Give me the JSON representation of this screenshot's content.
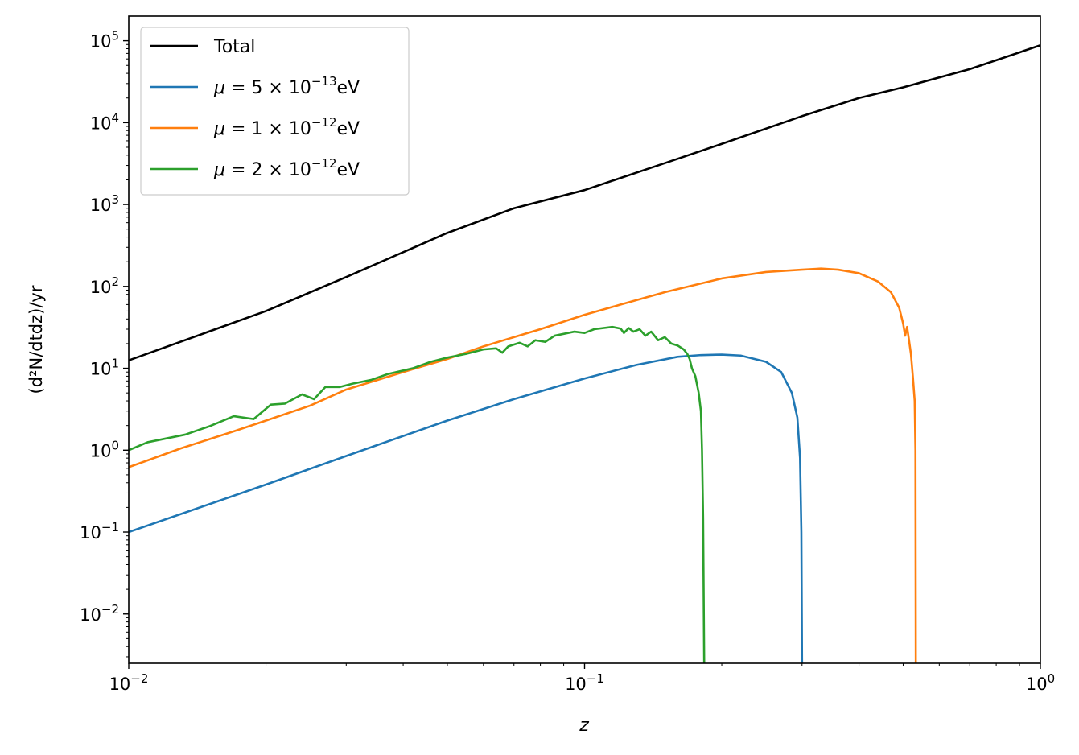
{
  "chart_data": {
    "type": "line",
    "title": "",
    "xlabel": "z",
    "ylabel": "(d²N/dtdz)/yr",
    "xscale": "log",
    "yscale": "log",
    "xlim": [
      0.01,
      1.0
    ],
    "ylim": [
      0.0025,
      200000
    ],
    "grid": false,
    "legend_position": "top-left",
    "x_ticks": [
      {
        "value": 0.01,
        "base": "10",
        "exp": "−2"
      },
      {
        "value": 0.1,
        "base": "10",
        "exp": "−1"
      },
      {
        "value": 1.0,
        "base": "10",
        "exp": "0"
      }
    ],
    "y_ticks": [
      {
        "value": 0.01,
        "base": "10",
        "exp": "−2"
      },
      {
        "value": 0.1,
        "base": "10",
        "exp": "−1"
      },
      {
        "value": 1,
        "base": "10",
        "exp": "0"
      },
      {
        "value": 10,
        "base": "10",
        "exp": "1"
      },
      {
        "value": 100,
        "base": "10",
        "exp": "2"
      },
      {
        "value": 1000,
        "base": "10",
        "exp": "3"
      },
      {
        "value": 10000,
        "base": "10",
        "exp": "4"
      },
      {
        "value": 100000,
        "base": "10",
        "exp": "5"
      }
    ],
    "series": [
      {
        "name": "Total",
        "legend": {
          "prefix": "Total",
          "coef": "",
          "exp": "",
          "unit": ""
        },
        "color": "#000000",
        "points": [
          [
            0.01,
            12.5
          ],
          [
            0.02,
            50
          ],
          [
            0.03,
            130
          ],
          [
            0.05,
            450
          ],
          [
            0.07,
            900
          ],
          [
            0.1,
            1500
          ],
          [
            0.15,
            3200
          ],
          [
            0.2,
            5500
          ],
          [
            0.3,
            12000
          ],
          [
            0.4,
            20000
          ],
          [
            0.5,
            27000
          ],
          [
            0.7,
            45000
          ],
          [
            1.0,
            88000
          ]
        ]
      },
      {
        "name": "μ = 5 × 10^-13 eV",
        "legend": {
          "prefix": "μ = ",
          "coef": "5 × 10",
          "exp": "−13",
          "unit": "eV"
        },
        "color": "#1f77b4",
        "points": [
          [
            0.01,
            0.1
          ],
          [
            0.02,
            0.38
          ],
          [
            0.03,
            0.85
          ],
          [
            0.05,
            2.3
          ],
          [
            0.07,
            4.2
          ],
          [
            0.1,
            7.5
          ],
          [
            0.13,
            11
          ],
          [
            0.16,
            13.8
          ],
          [
            0.18,
            14.5
          ],
          [
            0.2,
            14.7
          ],
          [
            0.22,
            14.3
          ],
          [
            0.25,
            12
          ],
          [
            0.27,
            9
          ],
          [
            0.285,
            5
          ],
          [
            0.293,
            2.5
          ],
          [
            0.297,
            0.8
          ],
          [
            0.299,
            0.1
          ],
          [
            0.3,
            0.0025
          ]
        ]
      },
      {
        "name": "μ = 1 × 10^-12 eV",
        "legend": {
          "prefix": "μ = ",
          "coef": "1 × 10",
          "exp": "−12",
          "unit": "eV"
        },
        "color": "#ff7f0e",
        "points": [
          [
            0.01,
            0.62
          ],
          [
            0.013,
            1.05
          ],
          [
            0.017,
            1.7
          ],
          [
            0.02,
            2.3
          ],
          [
            0.025,
            3.5
          ],
          [
            0.03,
            5.5
          ],
          [
            0.04,
            9
          ],
          [
            0.05,
            13
          ],
          [
            0.06,
            18.5
          ],
          [
            0.07,
            24
          ],
          [
            0.08,
            30
          ],
          [
            0.1,
            45
          ],
          [
            0.12,
            60
          ],
          [
            0.15,
            85
          ],
          [
            0.2,
            125
          ],
          [
            0.25,
            150
          ],
          [
            0.3,
            160
          ],
          [
            0.33,
            165
          ],
          [
            0.36,
            160
          ],
          [
            0.4,
            145
          ],
          [
            0.44,
            115
          ],
          [
            0.47,
            85
          ],
          [
            0.49,
            55
          ],
          [
            0.5,
            35
          ],
          [
            0.505,
            25
          ],
          [
            0.51,
            32
          ],
          [
            0.515,
            22
          ],
          [
            0.52,
            15
          ],
          [
            0.525,
            8
          ],
          [
            0.53,
            4
          ],
          [
            0.532,
            1
          ],
          [
            0.533,
            0.0025
          ]
        ]
      },
      {
        "name": "μ = 2 × 10^-12 eV",
        "legend": {
          "prefix": "μ = ",
          "coef": "2 × 10",
          "exp": "−12",
          "unit": "eV"
        },
        "color": "#2ca02c",
        "points": [
          [
            0.01,
            1.0
          ],
          [
            0.011,
            1.25
          ],
          [
            0.0133,
            1.55
          ],
          [
            0.015,
            1.95
          ],
          [
            0.017,
            2.6
          ],
          [
            0.0188,
            2.4
          ],
          [
            0.0205,
            3.6
          ],
          [
            0.022,
            3.7
          ],
          [
            0.024,
            4.8
          ],
          [
            0.0255,
            4.2
          ],
          [
            0.027,
            5.9
          ],
          [
            0.029,
            5.9
          ],
          [
            0.031,
            6.5
          ],
          [
            0.034,
            7.2
          ],
          [
            0.037,
            8.5
          ],
          [
            0.042,
            10
          ],
          [
            0.046,
            12
          ],
          [
            0.05,
            13.5
          ],
          [
            0.055,
            15
          ],
          [
            0.06,
            17
          ],
          [
            0.064,
            17.5
          ],
          [
            0.066,
            15.5
          ],
          [
            0.068,
            18.5
          ],
          [
            0.072,
            20.5
          ],
          [
            0.075,
            18.5
          ],
          [
            0.078,
            22
          ],
          [
            0.082,
            21
          ],
          [
            0.086,
            25
          ],
          [
            0.095,
            28
          ],
          [
            0.1,
            27
          ],
          [
            0.105,
            30
          ],
          [
            0.115,
            32
          ],
          [
            0.12,
            30.5
          ],
          [
            0.122,
            27
          ],
          [
            0.125,
            31
          ],
          [
            0.128,
            28
          ],
          [
            0.132,
            30
          ],
          [
            0.136,
            25
          ],
          [
            0.14,
            28
          ],
          [
            0.145,
            22
          ],
          [
            0.15,
            24
          ],
          [
            0.155,
            20
          ],
          [
            0.16,
            19
          ],
          [
            0.165,
            17
          ],
          [
            0.168,
            15
          ],
          [
            0.17,
            13
          ],
          [
            0.172,
            10
          ],
          [
            0.175,
            8
          ],
          [
            0.178,
            5
          ],
          [
            0.18,
            3
          ],
          [
            0.181,
            1
          ],
          [
            0.182,
            0.15
          ],
          [
            0.183,
            0.0025
          ]
        ]
      }
    ]
  }
}
